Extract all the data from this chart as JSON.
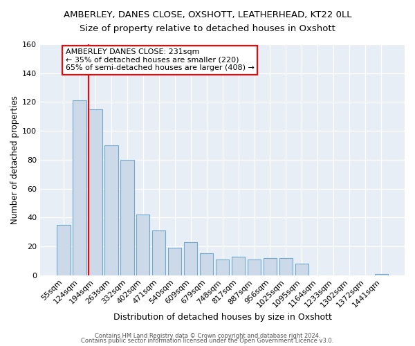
{
  "title": "AMBERLEY, DANES CLOSE, OXSHOTT, LEATHERHEAD, KT22 0LL",
  "subtitle": "Size of property relative to detached houses in Oxshott",
  "xlabel": "Distribution of detached houses by size in Oxshott",
  "ylabel": "Number of detached properties",
  "bar_labels": [
    "55sqm",
    "124sqm",
    "194sqm",
    "263sqm",
    "332sqm",
    "402sqm",
    "471sqm",
    "540sqm",
    "609sqm",
    "679sqm",
    "748sqm",
    "817sqm",
    "887sqm",
    "956sqm",
    "1025sqm",
    "1095sqm",
    "1164sqm",
    "1233sqm",
    "1302sqm",
    "1372sqm",
    "1441sqm"
  ],
  "bar_values": [
    35,
    121,
    115,
    90,
    80,
    42,
    31,
    19,
    23,
    15,
    11,
    13,
    11,
    12,
    12,
    8,
    0,
    0,
    0,
    0,
    1
  ],
  "bar_color": "#ccd9e8",
  "bar_edgecolor": "#6fa8d0",
  "red_line_x": 1.57,
  "annotation_line1": "AMBERLEY DANES CLOSE: 231sqm",
  "annotation_line2": "← 35% of detached houses are smaller (220)",
  "annotation_line3": "65% of semi-detached houses are larger (408) →",
  "ylim": [
    0,
    160
  ],
  "yticks": [
    0,
    20,
    40,
    60,
    80,
    100,
    120,
    140,
    160
  ],
  "footer1": "Contains HM Land Registry data © Crown copyright and database right 2024.",
  "footer2": "Contains public sector information licensed under the Open Government Licence v3.0.",
  "bg_color": "#e8eef5",
  "fig_bg_color": "#ffffff",
  "grid_color": "#ffffff",
  "title_fontsize": 9.5,
  "subtitle_fontsize": 9.5,
  "xlabel_fontsize": 9,
  "ylabel_fontsize": 8.5,
  "tick_fontsize": 8,
  "annot_fontsize": 8,
  "footer_fontsize": 6
}
